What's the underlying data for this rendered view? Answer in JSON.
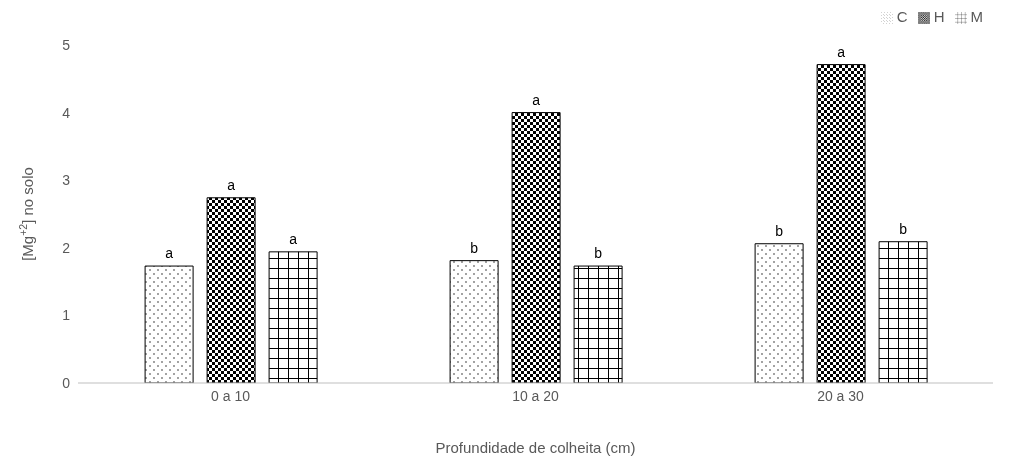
{
  "chart_data": {
    "type": "bar",
    "xlabel": "Profundidade de colheita (cm)",
    "ylabel": "[Mg$^{+2}$] no solo",
    "categories": [
      "0 a 10",
      "10 a 20",
      "20 a 30"
    ],
    "series": [
      {
        "name": "C",
        "color": "#000000",
        "values": [
          1.73,
          1.81,
          2.06
        ],
        "value_labels": [
          "a",
          "b",
          "b"
        ]
      },
      {
        "name": "H",
        "color": "#000000",
        "values": [
          2.74,
          4.0,
          4.71
        ],
        "value_labels": [
          "a",
          "a",
          "a"
        ]
      },
      {
        "name": "M",
        "color": "#000000",
        "values": [
          1.94,
          1.73,
          2.09
        ],
        "value_labels": [
          "a",
          "b",
          "b"
        ]
      }
    ],
    "ylim": [
      0,
      5
    ],
    "yticks": [
      0,
      1,
      2,
      3,
      4,
      5
    ],
    "legend": "top right"
  }
}
